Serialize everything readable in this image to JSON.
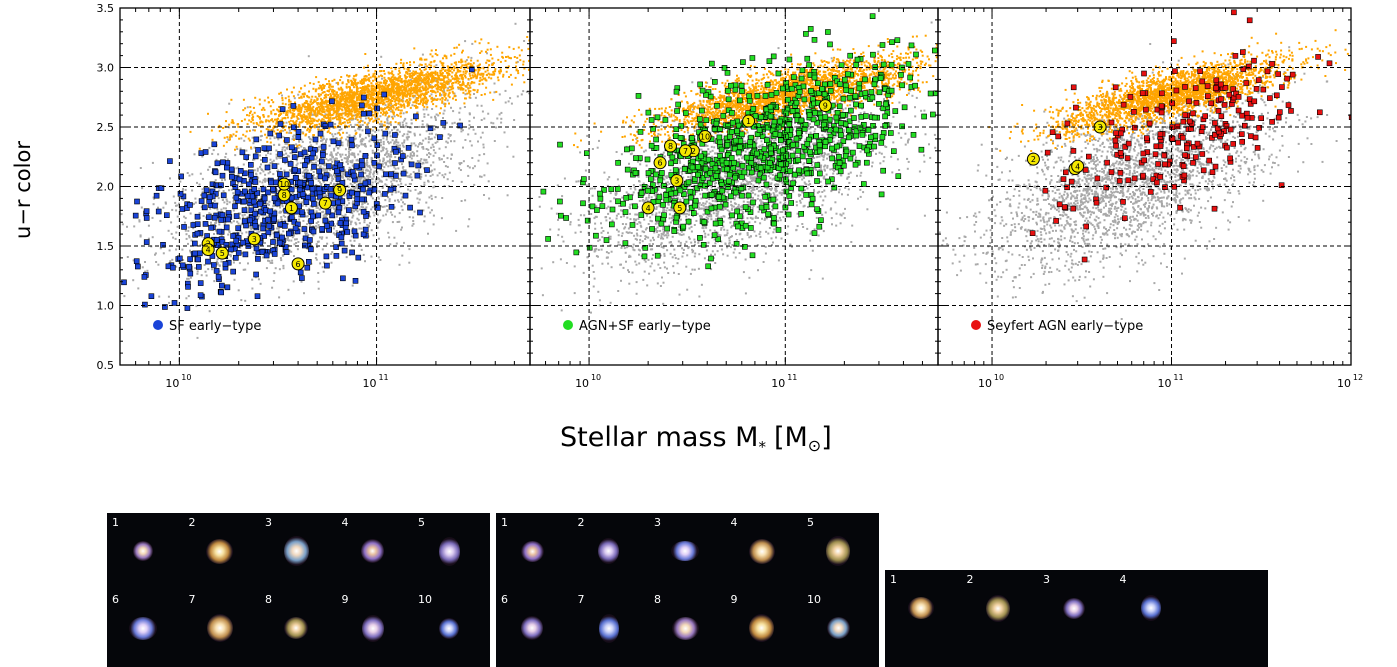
{
  "figure": {
    "ylabel": "u−r color",
    "xlabel": "Stellar mass M",
    "xlabel_sub": "*",
    "xlabel_unit_open": "[M",
    "xlabel_unit_sun": "⊙",
    "xlabel_unit_close": "]"
  },
  "colors": {
    "background_population": "#a9a9a9",
    "red_sequence": "#ffa500",
    "sf_early": "#1a44d8",
    "agn_sf_early": "#22dd22",
    "seyfert_early": "#e81010",
    "highlight": "#f5e800"
  },
  "chart_data": [
    {
      "type": "scatter",
      "panel": "left",
      "xscale": "log",
      "xlim": [
        5000000000.0,
        600000000000.0
      ],
      "ylim": [
        0.5,
        3.5
      ],
      "grid": true,
      "x_tick_labels": [
        "10",
        "10"
      ],
      "x_tick_exponents": [
        "10",
        "11"
      ],
      "y_tick_labels": [
        "0.5",
        "1.0",
        "1.5",
        "2.0",
        "2.5",
        "3.0",
        "3.5"
      ],
      "legend_position": "bottom-left",
      "series": [
        {
          "name": "SF early−type",
          "color": "#1a44d8",
          "center_log_mass": 10.5,
          "center_color": 1.85,
          "spread_log_mass": 0.33,
          "spread_color": 0.3,
          "slope": 0.55,
          "count": 560
        },
        {
          "role": "highlighted",
          "labels": [
            "1",
            "2",
            "3",
            "4",
            "5",
            "6",
            "7",
            "8",
            "9",
            "10"
          ],
          "points": [
            [
              37000000000.0,
              1.82
            ],
            [
              14000000000.0,
              1.52
            ],
            [
              24000000000.0,
              1.56
            ],
            [
              14000000000.0,
              1.47
            ],
            [
              16500000000.0,
              1.44
            ],
            [
              40000000000.0,
              1.35
            ],
            [
              55000000000.0,
              1.86
            ],
            [
              34000000000.0,
              1.93
            ],
            [
              65000000000.0,
              1.97
            ],
            [
              34000000000.0,
              2.02
            ]
          ]
        }
      ]
    },
    {
      "type": "scatter",
      "panel": "middle",
      "xscale": "log",
      "xlim": [
        5000000000.0,
        600000000000.0
      ],
      "ylim": [
        0.5,
        3.5
      ],
      "grid": true,
      "x_tick_labels": [
        "10",
        "10"
      ],
      "x_tick_exponents": [
        "10",
        "11"
      ],
      "legend_position": "bottom-left",
      "series": [
        {
          "name": "AGN+SF early−type",
          "color": "#22dd22",
          "center_log_mass": 10.9,
          "center_color": 2.35,
          "spread_log_mass": 0.38,
          "spread_color": 0.3,
          "slope": 0.55,
          "count": 900
        },
        {
          "role": "highlighted",
          "labels": [
            "1",
            "2",
            "3",
            "4",
            "5",
            "6",
            "7",
            "8",
            "9",
            "10"
          ],
          "points": [
            [
              65000000000.0,
              2.55
            ],
            [
              34000000000.0,
              2.3
            ],
            [
              28000000000.0,
              2.05
            ],
            [
              20000000000.0,
              1.82
            ],
            [
              29000000000.0,
              1.82
            ],
            [
              23000000000.0,
              2.2
            ],
            [
              31000000000.0,
              2.3
            ],
            [
              26000000000.0,
              2.34
            ],
            [
              160000000000.0,
              2.68
            ],
            [
              39000000000.0,
              2.42
            ]
          ]
        }
      ]
    },
    {
      "type": "scatter",
      "panel": "right",
      "xscale": "log",
      "xlim": [
        5000000000.0,
        1000000000000.0
      ],
      "ylim": [
        0.5,
        3.5
      ],
      "grid": true,
      "x_tick_labels": [
        "10",
        "10",
        "10"
      ],
      "x_tick_exponents": [
        "10",
        "11",
        "12"
      ],
      "legend_position": "bottom-left",
      "series": [
        {
          "name": "Seyfert AGN early−type",
          "color": "#e81010",
          "center_log_mass": 11.05,
          "center_color": 2.45,
          "spread_log_mass": 0.35,
          "spread_color": 0.3,
          "slope": 0.55,
          "count": 230
        },
        {
          "role": "highlighted",
          "labels": [
            "1",
            "2",
            "3",
            "4"
          ],
          "points": [
            [
              29000000000.0,
              2.15
            ],
            [
              17000000000.0,
              2.23
            ],
            [
              40000000000.0,
              2.5
            ],
            [
              30000000000.0,
              2.17
            ]
          ]
        }
      ]
    }
  ],
  "strips": [
    {
      "labels": [
        "1",
        "2",
        "3",
        "4",
        "5",
        "6",
        "7",
        "8",
        "9",
        "10"
      ]
    },
    {
      "labels": [
        "1",
        "2",
        "3",
        "4",
        "5",
        "6",
        "7",
        "8",
        "9",
        "10"
      ]
    },
    {
      "labels": [
        "1",
        "2",
        "3",
        "4"
      ]
    }
  ]
}
